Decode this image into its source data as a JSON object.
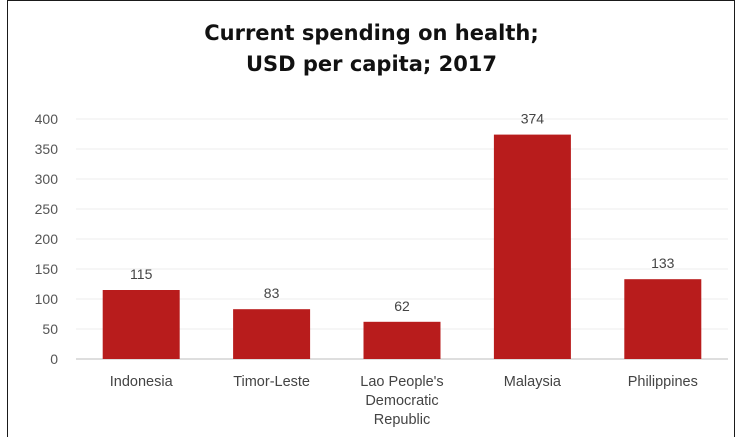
{
  "chart_data": {
    "type": "bar",
    "title": [
      "Current spending on health;",
      "USD per capita; 2017"
    ],
    "xlabel": "",
    "ylabel": "",
    "categories": [
      [
        "Indonesia"
      ],
      [
        "Timor-Leste"
      ],
      [
        "Lao People's",
        "Democratic",
        "Republic"
      ],
      [
        "Malaysia"
      ],
      [
        "Philippines"
      ]
    ],
    "values": [
      115,
      83,
      62,
      374,
      133
    ],
    "data_labels": [
      "115",
      "83",
      "62",
      "374",
      "133"
    ],
    "yticks": [
      0,
      50,
      100,
      150,
      200,
      250,
      300,
      350,
      400
    ],
    "ylim": [
      0,
      400
    ],
    "bar_color": "#b81c1c",
    "grid": true,
    "legend": "none"
  }
}
